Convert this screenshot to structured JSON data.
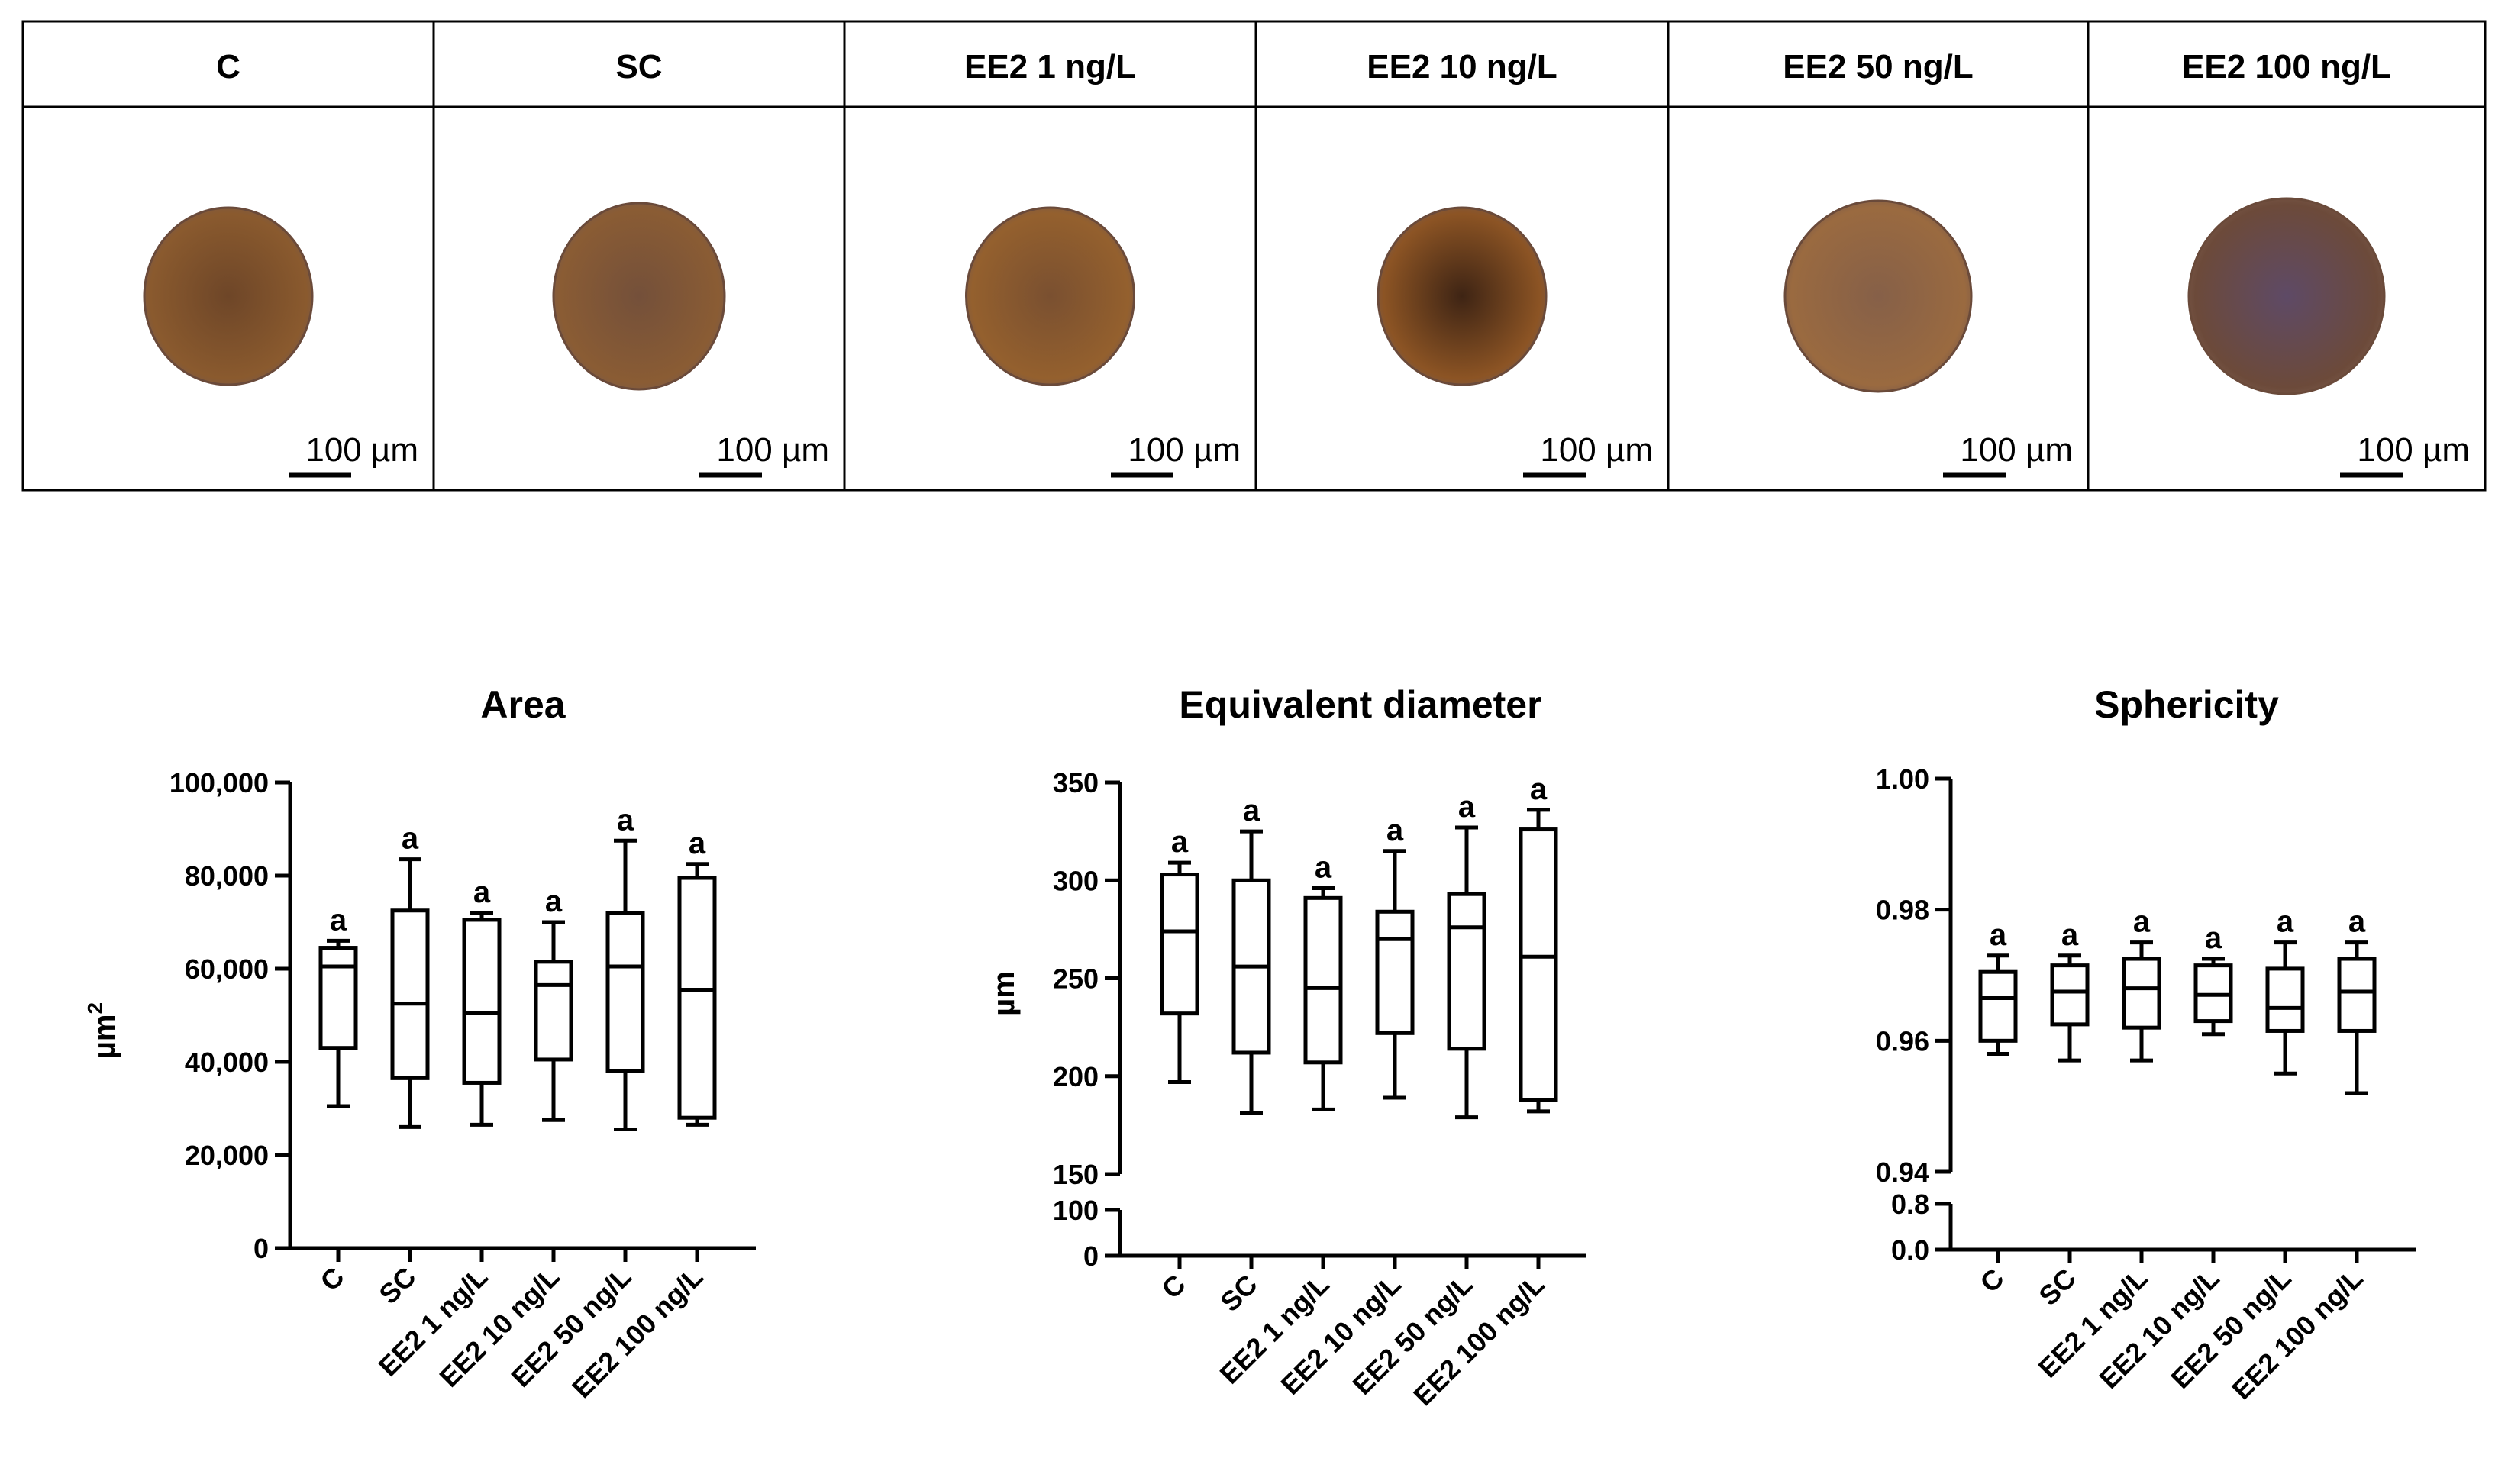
{
  "panel": {
    "headers": [
      "C",
      "SC",
      "EE2 1 ng/L",
      "EE2 10 ng/L",
      "EE2 50 ng/L",
      "EE2 100 ng/L"
    ],
    "scale_bar_label": "100 µm",
    "spheroid_colors": [
      {
        "fill": "#8a5a2e",
        "center": "#6e4628"
      },
      {
        "fill": "#8a5c34",
        "center": "#74503a"
      },
      {
        "fill": "#94602e",
        "center": "#7a5030"
      },
      {
        "fill": "#8c5424",
        "center": "#3e2414"
      },
      {
        "fill": "#9a6a40",
        "center": "#866048"
      },
      {
        "fill": "#6c4a3a",
        "center": "#5e4a66"
      }
    ]
  },
  "chart_data": [
    {
      "type": "box",
      "title": "Area",
      "ylabel": "µm",
      "ylabel_superscript": "2",
      "categories": [
        "C",
        "SC",
        "EE2 1 ng/L",
        "EE2 10 ng/L",
        "EE2 50 ng/L",
        "EE2 100 ng/L"
      ],
      "ylim": [
        0,
        100000
      ],
      "yticks": [
        {
          "value": 0,
          "label": "0"
        },
        {
          "value": 20000,
          "label": "20,000"
        },
        {
          "value": 40000,
          "label": "40,000"
        },
        {
          "value": 60000,
          "label": "60,000"
        },
        {
          "value": 80000,
          "label": "80,000"
        },
        {
          "value": 100000,
          "label": "100,000"
        }
      ],
      "boxes": [
        {
          "min": 30500,
          "q1": 43000,
          "median": 60500,
          "q3": 64500,
          "max": 66000
        },
        {
          "min": 26000,
          "q1": 36500,
          "median": 52500,
          "q3": 72500,
          "max": 83500
        },
        {
          "min": 26500,
          "q1": 35500,
          "median": 50500,
          "q3": 70500,
          "max": 72000
        },
        {
          "min": 27500,
          "q1": 40500,
          "median": 56500,
          "q3": 61500,
          "max": 70000
        },
        {
          "min": 25500,
          "q1": 38000,
          "median": 60500,
          "q3": 72000,
          "max": 87500
        },
        {
          "min": 26500,
          "q1": 28000,
          "median": 55500,
          "q3": 79500,
          "max": 82500
        }
      ],
      "significance": [
        "a",
        "a",
        "a",
        "a",
        "a",
        "a"
      ]
    },
    {
      "type": "box",
      "title": "Equivalent diameter",
      "ylabel": "µm",
      "categories": [
        "C",
        "SC",
        "EE2 1 ng/L",
        "EE2 10 ng/L",
        "EE2 50 ng/L",
        "EE2 100 ng/L"
      ],
      "ylim": [
        150,
        350
      ],
      "axis_break": true,
      "lower_segment": [
        0,
        100
      ],
      "yticks": [
        {
          "value": 150,
          "label": "150"
        },
        {
          "value": 200,
          "label": "200"
        },
        {
          "value": 250,
          "label": "250"
        },
        {
          "value": 300,
          "label": "300"
        },
        {
          "value": 350,
          "label": "350"
        }
      ],
      "lower_ticks": [
        {
          "value": 0,
          "label": "0"
        },
        {
          "value": 100,
          "label": "100"
        }
      ],
      "boxes": [
        {
          "min": 197,
          "q1": 232,
          "median": 274,
          "q3": 303,
          "max": 309
        },
        {
          "min": 181,
          "q1": 212,
          "median": 256,
          "q3": 300,
          "max": 325
        },
        {
          "min": 183,
          "q1": 207,
          "median": 245,
          "q3": 291,
          "max": 296
        },
        {
          "min": 189,
          "q1": 222,
          "median": 270,
          "q3": 284,
          "max": 315
        },
        {
          "min": 179,
          "q1": 214,
          "median": 276,
          "q3": 293,
          "max": 327
        },
        {
          "min": 182,
          "q1": 188,
          "median": 261,
          "q3": 326,
          "max": 336
        }
      ],
      "significance": [
        "a",
        "a",
        "a",
        "a",
        "a",
        "a"
      ]
    },
    {
      "type": "box",
      "title": "Sphericity",
      "ylabel": "",
      "categories": [
        "C",
        "SC",
        "EE2 1 ng/L",
        "EE2 10 ng/L",
        "EE2 50 ng/L",
        "EE2 100 ng/L"
      ],
      "ylim": [
        0.94,
        1.0
      ],
      "axis_break": true,
      "lower_segment": [
        0.0,
        0.8
      ],
      "yticks": [
        {
          "value": 0.94,
          "label": "0.94"
        },
        {
          "value": 0.96,
          "label": "0.96"
        },
        {
          "value": 0.98,
          "label": "0.98"
        },
        {
          "value": 1.0,
          "label": "1.00"
        }
      ],
      "lower_ticks": [
        {
          "value": 0.0,
          "label": "0.0"
        },
        {
          "value": 0.8,
          "label": "0.8"
        }
      ],
      "boxes": [
        {
          "min": 0.958,
          "q1": 0.96,
          "median": 0.9665,
          "q3": 0.9705,
          "max": 0.973
        },
        {
          "min": 0.957,
          "q1": 0.9625,
          "median": 0.9675,
          "q3": 0.9715,
          "max": 0.973
        },
        {
          "min": 0.957,
          "q1": 0.962,
          "median": 0.968,
          "q3": 0.9725,
          "max": 0.975
        },
        {
          "min": 0.961,
          "q1": 0.963,
          "median": 0.967,
          "q3": 0.9715,
          "max": 0.9725
        },
        {
          "min": 0.955,
          "q1": 0.9615,
          "median": 0.965,
          "q3": 0.971,
          "max": 0.975
        },
        {
          "min": 0.952,
          "q1": 0.9615,
          "median": 0.9675,
          "q3": 0.9725,
          "max": 0.975
        }
      ],
      "significance": [
        "a",
        "a",
        "a",
        "a",
        "a",
        "a"
      ]
    }
  ]
}
